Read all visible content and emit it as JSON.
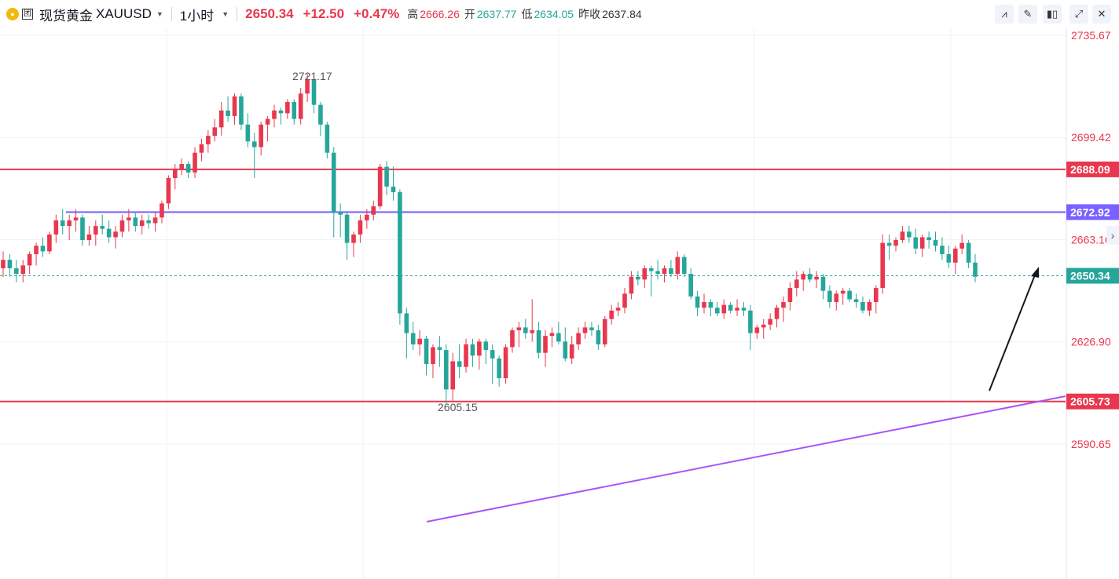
{
  "header": {
    "badge": "团",
    "symbol_name": "现货黄金",
    "symbol_code": "XAUUSD",
    "interval": "1小时",
    "last": "2650.34",
    "change": "+12.50",
    "change_pct": "+0.47%",
    "high_label": "高",
    "high": "2666.26",
    "open_label": "开",
    "open": "2637.77",
    "low_label": "低",
    "low": "2634.05",
    "prev_label": "昨收",
    "prev": "2637.84"
  },
  "colors": {
    "up": "#e8374e",
    "down": "#26a69a",
    "resistance": "#e8374e",
    "pivot": "#7b61ff",
    "trend": "#a855f7"
  },
  "chart_data": {
    "type": "candlestick",
    "y_ticks": [
      2735.67,
      2699.42,
      2663.16,
      2626.9,
      2590.65
    ],
    "y_tick_labels": [
      "2735.67",
      "2699.42",
      "2663.16",
      "2626.90",
      "2590.65"
    ],
    "ylim": [
      2590.0,
      2743.0
    ],
    "grid": true,
    "horizontal_lines": [
      {
        "value": 2688.09,
        "label": "2688.09",
        "color": "#e8374e"
      },
      {
        "value": 2672.92,
        "label": "2672.92",
        "color": "#7b61ff"
      },
      {
        "value": 2605.73,
        "label": "2605.73",
        "color": "#e8374e"
      }
    ],
    "last_price": {
      "value": 2650.34,
      "label": "2650.34"
    },
    "annotations": [
      {
        "text": "2721.17",
        "value": 2721.17
      },
      {
        "text": "2605.15",
        "value": 2605.15
      }
    ],
    "candles_ohlc": [
      [
        2653,
        2659,
        2650,
        2656
      ],
      [
        2656,
        2658,
        2650,
        2653
      ],
      [
        2653,
        2656,
        2648,
        2651
      ],
      [
        2651,
        2656,
        2648,
        2654
      ],
      [
        2654,
        2659,
        2651,
        2658
      ],
      [
        2658,
        2662,
        2654,
        2661
      ],
      [
        2661,
        2664,
        2657,
        2659
      ],
      [
        2659,
        2666,
        2658,
        2665
      ],
      [
        2665,
        2672,
        2662,
        2670
      ],
      [
        2670,
        2674,
        2665,
        2668
      ],
      [
        2668,
        2672,
        2663,
        2670
      ],
      [
        2670,
        2674,
        2666,
        2671
      ],
      [
        2671,
        2672,
        2661,
        2663
      ],
      [
        2663,
        2668,
        2661,
        2665
      ],
      [
        2665,
        2670,
        2661,
        2668
      ],
      [
        2668,
        2672,
        2665,
        2667
      ],
      [
        2667,
        2670,
        2662,
        2664
      ],
      [
        2664,
        2668,
        2660,
        2666
      ],
      [
        2666,
        2672,
        2664,
        2670
      ],
      [
        2670,
        2674,
        2666,
        2671
      ],
      [
        2671,
        2673,
        2666,
        2668
      ],
      [
        2668,
        2672,
        2665,
        2670
      ],
      [
        2670,
        2672,
        2667,
        2669
      ],
      [
        2669,
        2673,
        2666,
        2671
      ],
      [
        2671,
        2677,
        2669,
        2676
      ],
      [
        2676,
        2686,
        2674,
        2685
      ],
      [
        2685,
        2690,
        2681,
        2688
      ],
      [
        2688,
        2692,
        2686,
        2690
      ],
      [
        2690,
        2691,
        2685,
        2687
      ],
      [
        2687,
        2696,
        2685,
        2694
      ],
      [
        2694,
        2699,
        2691,
        2697
      ],
      [
        2697,
        2702,
        2694,
        2700
      ],
      [
        2700,
        2706,
        2698,
        2703
      ],
      [
        2703,
        2712,
        2700,
        2709
      ],
      [
        2709,
        2714,
        2705,
        2707
      ],
      [
        2707,
        2715,
        2704,
        2714
      ],
      [
        2714,
        2715,
        2702,
        2704
      ],
      [
        2704,
        2708,
        2696,
        2698
      ],
      [
        2698,
        2701,
        2685,
        2696
      ],
      [
        2696,
        2705,
        2693,
        2704
      ],
      [
        2704,
        2707,
        2698,
        2706
      ],
      [
        2706,
        2711,
        2703,
        2709
      ],
      [
        2709,
        2710,
        2704,
        2708
      ],
      [
        2708,
        2713,
        2706,
        2712
      ],
      [
        2712,
        2713,
        2704,
        2706
      ],
      [
        2706,
        2717,
        2704,
        2715
      ],
      [
        2715,
        2722,
        2712,
        2720
      ],
      [
        2720,
        2721,
        2708,
        2711
      ],
      [
        2711,
        2712,
        2700,
        2704
      ],
      [
        2704,
        2705,
        2692,
        2694
      ],
      [
        2694,
        2696,
        2664,
        2673
      ],
      [
        2673,
        2676,
        2664,
        2672
      ],
      [
        2672,
        2673,
        2656,
        2662
      ],
      [
        2662,
        2666,
        2657,
        2665
      ],
      [
        2665,
        2672,
        2662,
        2670
      ],
      [
        2670,
        2674,
        2667,
        2672
      ],
      [
        2672,
        2677,
        2670,
        2675
      ],
      [
        2675,
        2690,
        2674,
        2689
      ],
      [
        2689,
        2691,
        2679,
        2682
      ],
      [
        2682,
        2689,
        2677,
        2680
      ],
      [
        2680,
        2681,
        2633,
        2637
      ],
      [
        2637,
        2639,
        2621,
        2630
      ],
      [
        2630,
        2634,
        2624,
        2626
      ],
      [
        2626,
        2631,
        2622,
        2628
      ],
      [
        2628,
        2629,
        2615,
        2619
      ],
      [
        2619,
        2626,
        2614,
        2625
      ],
      [
        2625,
        2629,
        2618,
        2624
      ],
      [
        2624,
        2626,
        2605,
        2610
      ],
      [
        2610,
        2623,
        2606,
        2620
      ],
      [
        2620,
        2626,
        2614,
        2618
      ],
      [
        2618,
        2628,
        2616,
        2626
      ],
      [
        2626,
        2628,
        2618,
        2622
      ],
      [
        2622,
        2628,
        2617,
        2627
      ],
      [
        2627,
        2628,
        2619,
        2624
      ],
      [
        2624,
        2626,
        2612,
        2621
      ],
      [
        2621,
        2622,
        2611,
        2614
      ],
      [
        2614,
        2626,
        2612,
        2625
      ],
      [
        2625,
        2632,
        2623,
        2631
      ],
      [
        2631,
        2634,
        2625,
        2632
      ],
      [
        2632,
        2635,
        2628,
        2630
      ],
      [
        2630,
        2642,
        2627,
        2631
      ],
      [
        2631,
        2634,
        2621,
        2623
      ],
      [
        2623,
        2631,
        2618,
        2629
      ],
      [
        2629,
        2632,
        2625,
        2630
      ],
      [
        2630,
        2634,
        2626,
        2627
      ],
      [
        2627,
        2632,
        2620,
        2621
      ],
      [
        2621,
        2629,
        2619,
        2626
      ],
      [
        2626,
        2632,
        2624,
        2630
      ],
      [
        2630,
        2634,
        2628,
        2632
      ],
      [
        2632,
        2634,
        2629,
        2631
      ],
      [
        2631,
        2633,
        2624,
        2626
      ],
      [
        2626,
        2636,
        2625,
        2635
      ],
      [
        2635,
        2640,
        2633,
        2638
      ],
      [
        2638,
        2641,
        2636,
        2639
      ],
      [
        2639,
        2646,
        2637,
        2644
      ],
      [
        2644,
        2652,
        2642,
        2650
      ],
      [
        2650,
        2652,
        2647,
        2649
      ],
      [
        2649,
        2654,
        2646,
        2653
      ],
      [
        2653,
        2654,
        2643,
        2652
      ],
      [
        2652,
        2656,
        2649,
        2651
      ],
      [
        2651,
        2654,
        2648,
        2653
      ],
      [
        2653,
        2656,
        2650,
        2651
      ],
      [
        2651,
        2659,
        2649,
        2657
      ],
      [
        2657,
        2658,
        2650,
        2651
      ],
      [
        2651,
        2653,
        2642,
        2643
      ],
      [
        2643,
        2645,
        2636,
        2639
      ],
      [
        2639,
        2644,
        2637,
        2641
      ],
      [
        2641,
        2642,
        2636,
        2639
      ],
      [
        2639,
        2641,
        2636,
        2637
      ],
      [
        2637,
        2642,
        2635,
        2640
      ],
      [
        2640,
        2641,
        2637,
        2638
      ],
      [
        2638,
        2642,
        2636,
        2639
      ],
      [
        2639,
        2641,
        2636,
        2638
      ],
      [
        2638,
        2640,
        2624,
        2630
      ],
      [
        2630,
        2633,
        2628,
        2632
      ],
      [
        2632,
        2635,
        2628,
        2633
      ],
      [
        2633,
        2637,
        2631,
        2635
      ],
      [
        2635,
        2640,
        2632,
        2639
      ],
      [
        2639,
        2643,
        2634,
        2641
      ],
      [
        2641,
        2648,
        2638,
        2646
      ],
      [
        2646,
        2652,
        2643,
        2649
      ],
      [
        2649,
        2652,
        2645,
        2651
      ],
      [
        2651,
        2653,
        2648,
        2649
      ],
      [
        2649,
        2652,
        2646,
        2650
      ],
      [
        2650,
        2651,
        2642,
        2645
      ],
      [
        2645,
        2647,
        2639,
        2641
      ],
      [
        2641,
        2645,
        2638,
        2644
      ],
      [
        2644,
        2646,
        2640,
        2645
      ],
      [
        2645,
        2646,
        2641,
        2642
      ],
      [
        2642,
        2644,
        2639,
        2641
      ],
      [
        2641,
        2643,
        2637,
        2638
      ],
      [
        2638,
        2642,
        2636,
        2641
      ],
      [
        2641,
        2647,
        2637,
        2646
      ],
      [
        2646,
        2665,
        2644,
        2662
      ],
      [
        2662,
        2665,
        2656,
        2661
      ],
      [
        2661,
        2664,
        2659,
        2663
      ],
      [
        2663,
        2668,
        2662,
        2666
      ],
      [
        2666,
        2668,
        2662,
        2664
      ],
      [
        2664,
        2667,
        2658,
        2660
      ],
      [
        2660,
        2665,
        2657,
        2664
      ],
      [
        2664,
        2666,
        2660,
        2663
      ],
      [
        2663,
        2666,
        2659,
        2661
      ],
      [
        2661,
        2664,
        2656,
        2658
      ],
      [
        2658,
        2661,
        2653,
        2655
      ],
      [
        2655,
        2661,
        2651,
        2660
      ],
      [
        2660,
        2665,
        2658,
        2662
      ],
      [
        2662,
        2663,
        2653,
        2655
      ],
      [
        2655,
        2658,
        2648,
        2650
      ]
    ]
  }
}
